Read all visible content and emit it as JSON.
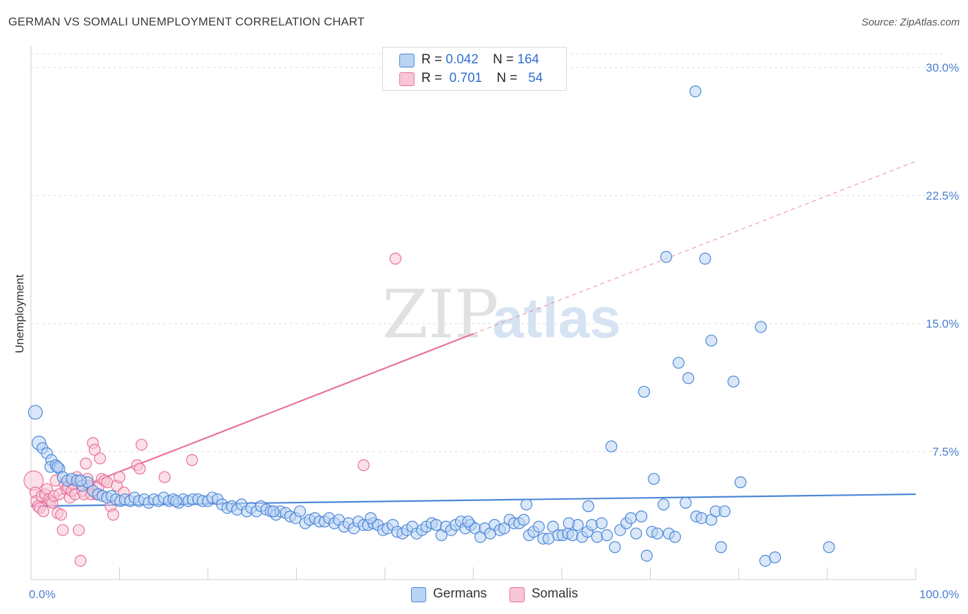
{
  "title": "GERMAN VS SOMALI UNEMPLOYMENT CORRELATION CHART",
  "source": "Source: ZipAtlas.com",
  "legend": {
    "row1": {
      "r_label": "R = ",
      "r_value": "0.042",
      "n_label": "N = ",
      "n_value": "164"
    },
    "row2": {
      "r_label": "R = ",
      "r_value": "0.701",
      "n_label": "N = ",
      "n_value": "54"
    }
  },
  "watermark": {
    "part1": "ZIP",
    "part2": "atlas"
  },
  "colors": {
    "germans": "#4a86d8",
    "somalis": "#e8709a",
    "germans_fill": "#b9d3f3",
    "somalis_fill": "#f8c6d6"
  },
  "chart_data": {
    "type": "scatter",
    "xlabel": "",
    "ylabel": "Unemployment",
    "xlim": [
      0,
      100
    ],
    "ylim": [
      0,
      30
    ],
    "x_ticks": [
      "0.0%",
      "100.0%"
    ],
    "y_ticks": [
      {
        "value": 7.5,
        "label": "7.5%"
      },
      {
        "value": 15.0,
        "label": "15.0%"
      },
      {
        "value": 22.5,
        "label": "22.5%"
      },
      {
        "value": 30.0,
        "label": "30.0%"
      }
    ],
    "grid": "horizontal dashed",
    "series": [
      {
        "name": "Germans",
        "trend": {
          "x": [
            0,
            100
          ],
          "y": [
            4.3,
            5.0
          ],
          "dashed_from": null
        },
        "points": [
          [
            0.5,
            9.8
          ],
          [
            0.9,
            8.0
          ],
          [
            1.3,
            7.7
          ],
          [
            1.8,
            7.4
          ],
          [
            2.3,
            7.0
          ],
          [
            2.2,
            6.6
          ],
          [
            2.8,
            6.7
          ],
          [
            3.2,
            6.5
          ],
          [
            3.6,
            6.0
          ],
          [
            4.1,
            5.8
          ],
          [
            4.6,
            5.9
          ],
          [
            5.2,
            5.8
          ],
          [
            5.8,
            5.5
          ],
          [
            6.4,
            5.7
          ],
          [
            7.0,
            5.2
          ],
          [
            7.6,
            5.0
          ],
          [
            8.1,
            4.9
          ],
          [
            8.6,
            4.8
          ],
          [
            9.1,
            4.9
          ],
          [
            9.6,
            4.7
          ],
          [
            10.1,
            4.6
          ],
          [
            10.6,
            4.7
          ],
          [
            11.2,
            4.6
          ],
          [
            11.7,
            4.8
          ],
          [
            12.2,
            4.6
          ],
          [
            12.8,
            4.7
          ],
          [
            13.3,
            4.5
          ],
          [
            13.9,
            4.7
          ],
          [
            14.4,
            4.6
          ],
          [
            15.0,
            4.8
          ],
          [
            15.6,
            4.6
          ],
          [
            16.1,
            4.7
          ],
          [
            16.7,
            4.5
          ],
          [
            17.2,
            4.7
          ],
          [
            17.8,
            4.6
          ],
          [
            18.3,
            4.7
          ],
          [
            18.9,
            4.7
          ],
          [
            19.4,
            4.6
          ],
          [
            20.0,
            4.6
          ],
          [
            20.5,
            4.8
          ],
          [
            21.1,
            4.7
          ],
          [
            21.6,
            4.4
          ],
          [
            22.2,
            4.2
          ],
          [
            22.7,
            4.3
          ],
          [
            23.3,
            4.1
          ],
          [
            23.8,
            4.4
          ],
          [
            24.4,
            4.0
          ],
          [
            24.9,
            4.2
          ],
          [
            25.5,
            4.0
          ],
          [
            26.0,
            4.3
          ],
          [
            26.6,
            4.1
          ],
          [
            27.1,
            4.0
          ],
          [
            27.7,
            3.8
          ],
          [
            28.2,
            4.0
          ],
          [
            28.8,
            3.9
          ],
          [
            29.3,
            3.7
          ],
          [
            29.9,
            3.6
          ],
          [
            30.4,
            4.0
          ],
          [
            31.0,
            3.3
          ],
          [
            31.5,
            3.5
          ],
          [
            32.1,
            3.6
          ],
          [
            32.6,
            3.4
          ],
          [
            33.2,
            3.4
          ],
          [
            33.7,
            3.6
          ],
          [
            34.3,
            3.3
          ],
          [
            34.8,
            3.5
          ],
          [
            35.4,
            3.1
          ],
          [
            35.9,
            3.3
          ],
          [
            36.5,
            3.0
          ],
          [
            37.0,
            3.4
          ],
          [
            37.6,
            3.2
          ],
          [
            38.1,
            3.2
          ],
          [
            38.7,
            3.3
          ],
          [
            39.2,
            3.2
          ],
          [
            39.8,
            2.9
          ],
          [
            40.3,
            3.0
          ],
          [
            40.9,
            3.2
          ],
          [
            41.4,
            2.8
          ],
          [
            42.0,
            2.7
          ],
          [
            42.5,
            2.9
          ],
          [
            43.1,
            3.1
          ],
          [
            43.6,
            2.7
          ],
          [
            44.2,
            2.9
          ],
          [
            44.7,
            3.1
          ],
          [
            45.3,
            3.3
          ],
          [
            45.8,
            3.2
          ],
          [
            46.4,
            2.6
          ],
          [
            46.9,
            3.1
          ],
          [
            47.5,
            2.9
          ],
          [
            48.0,
            3.2
          ],
          [
            48.6,
            3.4
          ],
          [
            49.1,
            3.0
          ],
          [
            49.7,
            3.2
          ],
          [
            50.2,
            3.0
          ],
          [
            50.8,
            2.5
          ],
          [
            51.3,
            3.0
          ],
          [
            51.9,
            2.7
          ],
          [
            52.4,
            3.2
          ],
          [
            53.0,
            2.9
          ],
          [
            53.5,
            3.0
          ],
          [
            54.1,
            3.5
          ],
          [
            54.6,
            3.3
          ],
          [
            55.2,
            3.3
          ],
          [
            55.7,
            3.5
          ],
          [
            56.3,
            2.6
          ],
          [
            56.8,
            2.8
          ],
          [
            57.4,
            3.1
          ],
          [
            57.9,
            2.4
          ],
          [
            58.5,
            2.4
          ],
          [
            59.0,
            3.1
          ],
          [
            59.6,
            2.6
          ],
          [
            60.1,
            2.6
          ],
          [
            60.7,
            2.7
          ],
          [
            61.2,
            2.6
          ],
          [
            61.8,
            3.2
          ],
          [
            62.3,
            2.5
          ],
          [
            62.9,
            2.8
          ],
          [
            63.4,
            3.2
          ],
          [
            64.0,
            2.5
          ],
          [
            64.5,
            3.3
          ],
          [
            65.1,
            2.6
          ],
          [
            66.0,
            1.9
          ],
          [
            66.6,
            2.9
          ],
          [
            67.3,
            3.3
          ],
          [
            67.8,
            3.6
          ],
          [
            68.4,
            2.7
          ],
          [
            69.0,
            3.7
          ],
          [
            69.6,
            1.4
          ],
          [
            70.2,
            2.8
          ],
          [
            70.8,
            2.7
          ],
          [
            71.5,
            4.4
          ],
          [
            72.1,
            2.7
          ],
          [
            72.8,
            2.5
          ],
          [
            74.0,
            4.5
          ],
          [
            75.2,
            3.7
          ],
          [
            75.8,
            3.6
          ],
          [
            76.9,
            3.5
          ],
          [
            77.4,
            4.0
          ],
          [
            78.0,
            1.9
          ],
          [
            78.4,
            4.0
          ],
          [
            56.0,
            4.4
          ],
          [
            63.0,
            4.3
          ],
          [
            65.6,
            7.8
          ],
          [
            69.3,
            11.0
          ],
          [
            70.4,
            5.9
          ],
          [
            71.8,
            18.9
          ],
          [
            73.2,
            12.7
          ],
          [
            74.3,
            11.8
          ],
          [
            75.1,
            28.6
          ],
          [
            76.2,
            18.8
          ],
          [
            76.9,
            14.0
          ],
          [
            79.4,
            11.6
          ],
          [
            80.2,
            5.7
          ],
          [
            82.5,
            14.8
          ],
          [
            83.0,
            1.1
          ],
          [
            84.1,
            1.3
          ],
          [
            90.2,
            1.9
          ],
          [
            60.8,
            3.3
          ],
          [
            49.4,
            3.4
          ],
          [
            38.4,
            3.6
          ],
          [
            27.4,
            4.0
          ],
          [
            16.4,
            4.6
          ],
          [
            5.6,
            5.8
          ],
          [
            3.0,
            6.6
          ]
        ]
      },
      {
        "name": "Somalis",
        "trend": {
          "x": [
            0,
            100
          ],
          "y": [
            4.3,
            24.5
          ],
          "dashed_from": 50
        },
        "points": [
          [
            0.3,
            5.8
          ],
          [
            0.5,
            5.1
          ],
          [
            0.6,
            4.6
          ],
          [
            0.8,
            4.3
          ],
          [
            1.0,
            4.2
          ],
          [
            1.2,
            4.9
          ],
          [
            1.4,
            4.0
          ],
          [
            1.6,
            5.0
          ],
          [
            1.8,
            5.3
          ],
          [
            2.0,
            4.7
          ],
          [
            2.2,
            4.6
          ],
          [
            2.4,
            4.5
          ],
          [
            2.6,
            4.9
          ],
          [
            2.8,
            5.8
          ],
          [
            3.0,
            3.9
          ],
          [
            3.2,
            5.0
          ],
          [
            3.4,
            3.8
          ],
          [
            3.6,
            2.9
          ],
          [
            3.8,
            5.6
          ],
          [
            4.0,
            5.3
          ],
          [
            4.2,
            5.4
          ],
          [
            4.4,
            4.8
          ],
          [
            4.6,
            5.2
          ],
          [
            4.8,
            5.6
          ],
          [
            5.0,
            5.0
          ],
          [
            5.2,
            6.0
          ],
          [
            5.4,
            2.9
          ],
          [
            5.6,
            1.1
          ],
          [
            5.8,
            5.2
          ],
          [
            6.0,
            5.0
          ],
          [
            6.2,
            6.8
          ],
          [
            6.4,
            5.9
          ],
          [
            6.6,
            5.5
          ],
          [
            6.8,
            5.0
          ],
          [
            7.0,
            8.0
          ],
          [
            7.2,
            7.6
          ],
          [
            7.4,
            5.0
          ],
          [
            7.6,
            5.4
          ],
          [
            7.8,
            7.1
          ],
          [
            8.0,
            5.9
          ],
          [
            8.3,
            5.8
          ],
          [
            8.6,
            5.7
          ],
          [
            9.0,
            4.3
          ],
          [
            9.3,
            3.8
          ],
          [
            9.7,
            5.5
          ],
          [
            10.0,
            6.0
          ],
          [
            10.5,
            5.1
          ],
          [
            12.0,
            6.7
          ],
          [
            12.3,
            6.5
          ],
          [
            12.5,
            7.9
          ],
          [
            15.1,
            6.0
          ],
          [
            18.2,
            7.0
          ],
          [
            37.6,
            6.7
          ],
          [
            41.2,
            18.8
          ]
        ]
      }
    ]
  }
}
